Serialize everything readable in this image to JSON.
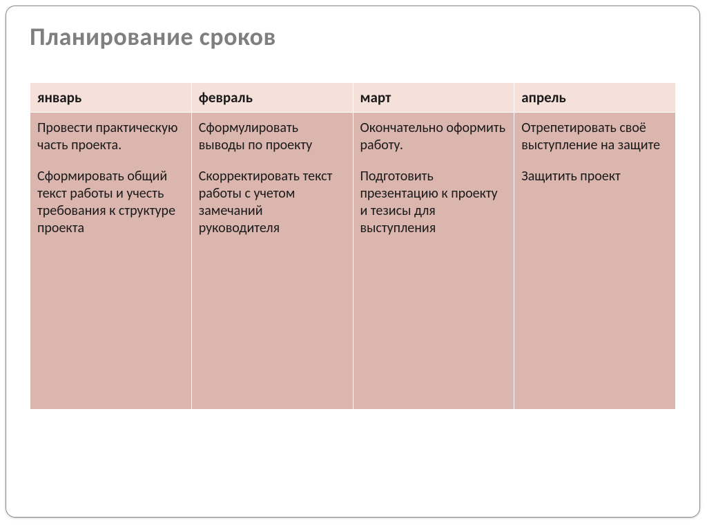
{
  "title": "Планирование сроков",
  "table": {
    "type": "table",
    "header_bg": "#f5e1da",
    "body_bg": "#dbb6ae",
    "border_color": "#ffffff",
    "columns": [
      {
        "label": "январь"
      },
      {
        "label": "февраль"
      },
      {
        "label": "март"
      },
      {
        "label": "апрель"
      }
    ],
    "rows": [
      [
        {
          "p1": "Провести практическую часть проекта.",
          "p2": "Сформировать общий текст работы и учесть требования к структуре проекта"
        },
        {
          "p1": "Сформулировать выводы по проекту",
          "p2": "Скорректировать текст работы с учетом замечаний руководителя"
        },
        {
          "p1": "Окончательно оформить работу.",
          "p2": "Подготовить презентацию к проекту и тезисы для выступления"
        },
        {
          "p1": "Отрепетировать своё выступление на защите",
          "p2": "Защитить проект"
        }
      ]
    ],
    "title_fontsize_pt": 27,
    "header_fontsize_pt": 16,
    "body_fontsize_pt": 15
  },
  "colors": {
    "title_text": "#7f7f7f",
    "body_text": "#1a1a1a",
    "slide_bg": "#ffffff",
    "frame_border": "#888888"
  }
}
